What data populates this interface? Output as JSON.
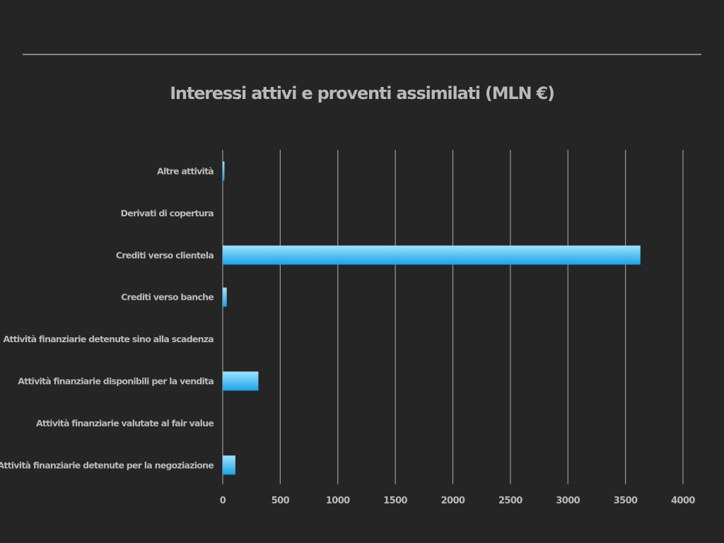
{
  "slide": {
    "title": "Interessi attivi e proventi assimilati (MLN €)"
  },
  "colors": {
    "background": "#252525",
    "text": "#b9b9b9",
    "gridline": "#9a9a9a",
    "bar_top": "#9fe3ff",
    "bar_bottom": "#1aa3e8"
  },
  "chart_data": {
    "type": "bar",
    "orientation": "horizontal",
    "title": "Interessi attivi e proventi assimilati (MLN €)",
    "xlabel": "",
    "ylabel": "",
    "xlim": [
      0,
      4000
    ],
    "grid": true,
    "legend": "none",
    "x_ticks": [
      "0",
      "500",
      "1000",
      "1500",
      "2000",
      "2500",
      "3000",
      "3500",
      "4000"
    ],
    "categories": [
      "Altre attività",
      "Derivati di copertura",
      "Crediti verso clientela",
      "Crediti verso banche",
      "Attività finanziarie detenute sino alla scadenza",
      "Attività finanziarie disponibili per la vendita",
      "Attività finanziarie valutate al fair value",
      "Attività finanziarie detenute per la negoziazione"
    ],
    "values": [
      15,
      0,
      3630,
      35,
      0,
      310,
      0,
      110
    ]
  }
}
